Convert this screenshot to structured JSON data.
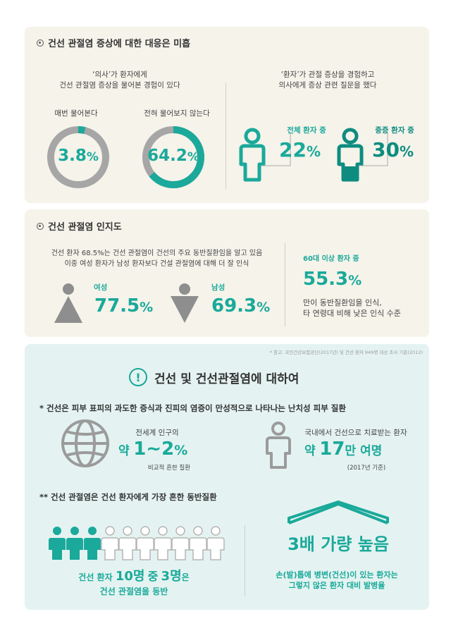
{
  "section1": {
    "title": "건선 관절염 증상에 대한 대응은 미흡",
    "left_heading_line1": "‘의사’가 환자에게",
    "left_heading_line2": "건선 관절염 증상을 물어본 경험이 있다",
    "donut1_label": "매번 물어본다",
    "donut1_value": "3.8",
    "donut1_fraction": 0.038,
    "donut2_label": "전혀 물어보지 않는다",
    "donut2_value": "64.2",
    "donut2_fraction": 0.642,
    "percent": "%",
    "right_heading_line1": "‘환자’가 관절 증상을 경험하고",
    "right_heading_line2": "의사에게 증상 관련 질문을 했다",
    "patient1_label": "전체 환자 중",
    "patient1_value": "22",
    "patient2_label": "중증 환자 중",
    "patient2_value": "30"
  },
  "section2": {
    "title": "건선 관절염 인지도",
    "desc_line1": "건선 환자 68.5%는 건선 관절염이 건선의 주요 동반질환임을 알고 있음",
    "desc_line2": "이중 여성 환자가 남성 환자보다 건설 관절염에 대해 더 잘 인식",
    "female_label": "여성",
    "female_value": "77.5",
    "male_label": "남성",
    "male_value": "69.3",
    "age_label": "60대 이상 환자 중",
    "age_value": "55.3",
    "age_desc_line1": "만이 동반질환임을 인식,",
    "age_desc_line2": "타 연령대 비해 낮은 인식 수준",
    "source": "* 참고: 국민건강보험공단(2017년) 및 건선 환자 949명 대상 조사 기준(2012)"
  },
  "section3": {
    "title": "건선 및 건선관절염에 대하여",
    "note1": "* 건선은 피부 표피의 과도한 증식과 진피의 염증이 만성적으로 나타나는 난치성 피부 질환",
    "globe_caption": "전세계 인구의",
    "globe_prefix": "약",
    "globe_value": "1~2",
    "globe_sub": "비교적 흔한 질환",
    "korea_caption": "국내에서 건선으로 치료받는 환자",
    "korea_prefix": "약",
    "korea_value": "17",
    "korea_unit": "만 여명",
    "korea_sub": "(2017년 기준)",
    "note2": "** 건선 관절염은 건선 환자에게 가장 흔한 동반질환",
    "people_line1_a": "건선 환자",
    "people_line1_b": "10명",
    "people_line1_c": "중",
    "people_line1_d": "3명",
    "people_line1_e": "은",
    "people_line2": "건선 관절염을 동반",
    "people_filled": 3,
    "people_total": 10,
    "house_value": "3배 가량 높음",
    "house_desc_line1": "손(발)톱에 병변(건선)이 있는 환자는",
    "house_desc_line2": "그렇지 않은 환자 대비 발병율"
  },
  "colors": {
    "teal": "#1aa99a",
    "dark_teal": "#0e8c80",
    "gray": "#a6a6a6",
    "panel": "#f5f3ea",
    "panel_mint": "#e4f3f1"
  }
}
